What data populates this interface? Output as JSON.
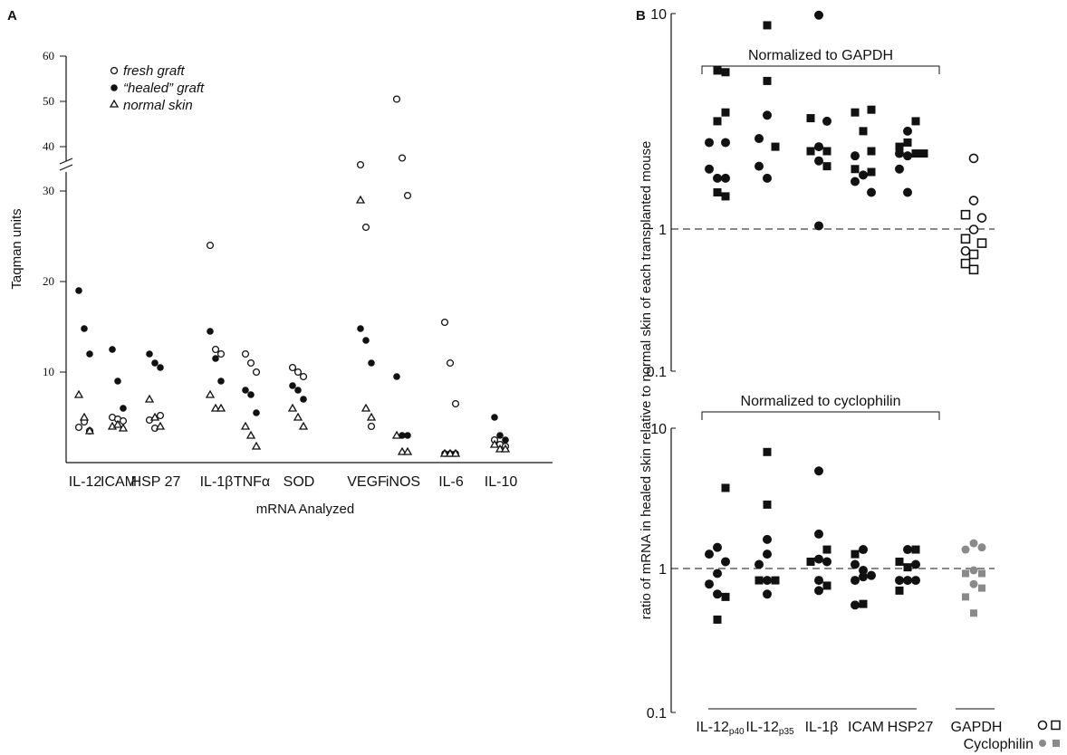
{
  "panel_a_letter": "A",
  "panel_b_letter": "B",
  "chart_data": [
    {
      "type": "scatter",
      "panel": "A",
      "ylabel": "Taqman units",
      "xlabel": "mRNA Analyzed",
      "y_ticks_lower": [
        10,
        20,
        30
      ],
      "y_ticks_upper": [
        40,
        50,
        60
      ],
      "y_axis_break": "between 30 and 40",
      "categories": [
        "IL-12",
        "ICAM",
        "HSP 27",
        "IL-1β",
        "TNFα",
        "SOD",
        "VEGF",
        "iNOS",
        "IL-6",
        "IL-10"
      ],
      "legend": {
        "fresh": "fresh graft",
        "healed": "“healed” graft",
        "normal": "normal skin"
      },
      "series": [
        {
          "name": "fresh graft",
          "marker": "open-circle",
          "values": [
            [
              3.9,
              4.5,
              3.5
            ],
            [
              5.0,
              4.8,
              4.6
            ],
            [
              4.7,
              3.8,
              5.2
            ],
            [
              24,
              12.5,
              12.0
            ],
            [
              12.0,
              11.0,
              10.0
            ],
            [
              10.5,
              10.0,
              9.5
            ],
            [
              36,
              26,
              4.0
            ],
            [
              50.5,
              37.5,
              29.5
            ],
            [
              15.5,
              11.0,
              6.5
            ],
            [
              2.5,
              2.0,
              1.8
            ]
          ]
        },
        {
          "name": "“healed” graft",
          "marker": "filled-circle",
          "values": [
            [
              19,
              14.8,
              12.0
            ],
            [
              12.5,
              9.0,
              6.0
            ],
            [
              12.0,
              11.0,
              10.5
            ],
            [
              14.5,
              11.5,
              9.0
            ],
            [
              8.0,
              7.5,
              5.5
            ],
            [
              8.5,
              8.0,
              7.0
            ],
            [
              14.8,
              13.5,
              11.0
            ],
            [
              9.5,
              3.0,
              3.0
            ],
            [
              1.0,
              1.0,
              1.0
            ],
            [
              5.0,
              3.0,
              2.5
            ]
          ]
        },
        {
          "name": "normal skin",
          "marker": "open-triangle",
          "values": [
            [
              7.5,
              5.0,
              3.5
            ],
            [
              4.0,
              4.2,
              3.8
            ],
            [
              7.0,
              5.0,
              4.0
            ],
            [
              7.5,
              6.0,
              6.0
            ],
            [
              4.0,
              3.0,
              1.8
            ],
            [
              6.0,
              5.0,
              4.0
            ],
            [
              29,
              6.0,
              5.0
            ],
            [
              3.0,
              1.2,
              1.2
            ],
            [
              1.0,
              1.0,
              1.0
            ],
            [
              2.0,
              1.5,
              1.5
            ]
          ]
        }
      ]
    },
    {
      "type": "scatter",
      "panel": "B-top",
      "title": "Normalized to GAPDH",
      "ylabel": "ratio of mRNA in healed skin relative to normal skin of each transplanted mouse",
      "yscale": "log",
      "ylim": [
        0.1,
        10
      ],
      "y_ticks": [
        "10",
        "1",
        "0.1"
      ],
      "reference_line": 1,
      "categories": [
        "IL-12p40",
        "IL-12p35",
        "IL-1β",
        "ICAM",
        "HSP27",
        "GAPDH"
      ],
      "points": [
        {
          "cat": 0,
          "off": 1,
          "v": 4.8,
          "m": "sq"
        },
        {
          "cat": 0,
          "off": 2,
          "v": 4.7,
          "m": "sq"
        },
        {
          "cat": 0,
          "off": 1,
          "v": 2.5,
          "m": "sq"
        },
        {
          "cat": 0,
          "off": 2,
          "v": 2.8,
          "m": "sq"
        },
        {
          "cat": 0,
          "off": 0,
          "v": 1.9,
          "m": "ci"
        },
        {
          "cat": 0,
          "off": 2,
          "v": 1.9,
          "m": "ci"
        },
        {
          "cat": 0,
          "off": 0,
          "v": 1.35,
          "m": "ci"
        },
        {
          "cat": 0,
          "off": 1,
          "v": 1.2,
          "m": "ci"
        },
        {
          "cat": 0,
          "off": 2,
          "v": 1.2,
          "m": "ci"
        },
        {
          "cat": 0,
          "off": 1,
          "v": 1.0,
          "m": "sq"
        },
        {
          "cat": 0,
          "off": 2,
          "v": 0.95,
          "m": "sq"
        },
        {
          "cat": 1,
          "off": 1,
          "v": 8.6,
          "m": "sq"
        },
        {
          "cat": 1,
          "off": 1,
          "v": 4.2,
          "m": "sq"
        },
        {
          "cat": 1,
          "off": 1,
          "v": 2.7,
          "m": "ci"
        },
        {
          "cat": 1,
          "off": 0,
          "v": 2.0,
          "m": "ci"
        },
        {
          "cat": 1,
          "off": 2,
          "v": 1.8,
          "m": "sq"
        },
        {
          "cat": 1,
          "off": 0,
          "v": 1.4,
          "m": "ci"
        },
        {
          "cat": 1,
          "off": 1,
          "v": 1.2,
          "m": "ci"
        },
        {
          "cat": 2,
          "off": 1,
          "v": 9.8,
          "m": "ci"
        },
        {
          "cat": 2,
          "off": 0,
          "v": 2.6,
          "m": "sq"
        },
        {
          "cat": 2,
          "off": 2,
          "v": 2.5,
          "m": "ci"
        },
        {
          "cat": 2,
          "off": 0,
          "v": 1.7,
          "m": "sq"
        },
        {
          "cat": 2,
          "off": 1,
          "v": 1.8,
          "m": "ci"
        },
        {
          "cat": 2,
          "off": 2,
          "v": 1.7,
          "m": "sq"
        },
        {
          "cat": 2,
          "off": 1,
          "v": 1.5,
          "m": "ci"
        },
        {
          "cat": 2,
          "off": 2,
          "v": 1.4,
          "m": "sq"
        },
        {
          "cat": 2,
          "off": 1,
          "v": 0.65,
          "m": "ci"
        },
        {
          "cat": 3,
          "off": 0,
          "v": 2.8,
          "m": "sq"
        },
        {
          "cat": 3,
          "off": 2,
          "v": 2.9,
          "m": "sq"
        },
        {
          "cat": 3,
          "off": 1,
          "v": 2.2,
          "m": "sq"
        },
        {
          "cat": 3,
          "off": 0,
          "v": 1.6,
          "m": "ci"
        },
        {
          "cat": 3,
          "off": 2,
          "v": 1.7,
          "m": "sq"
        },
        {
          "cat": 3,
          "off": 0,
          "v": 1.35,
          "m": "sq"
        },
        {
          "cat": 3,
          "off": 2,
          "v": 1.3,
          "m": "sq"
        },
        {
          "cat": 3,
          "off": 1,
          "v": 1.25,
          "m": "ci"
        },
        {
          "cat": 3,
          "off": 0,
          "v": 1.15,
          "m": "ci"
        },
        {
          "cat": 3,
          "off": 2,
          "v": 1.0,
          "m": "ci"
        },
        {
          "cat": 4,
          "off": 2,
          "v": 2.5,
          "m": "sq"
        },
        {
          "cat": 4,
          "off": 1,
          "v": 2.2,
          "m": "ci"
        },
        {
          "cat": 4,
          "off": 0,
          "v": 1.8,
          "m": "sq"
        },
        {
          "cat": 4,
          "off": 1,
          "v": 1.9,
          "m": "sq"
        },
        {
          "cat": 4,
          "off": 0,
          "v": 1.65,
          "m": "ci"
        },
        {
          "cat": 4,
          "off": 1,
          "v": 1.6,
          "m": "ci"
        },
        {
          "cat": 4,
          "off": 2,
          "v": 1.65,
          "m": "sq"
        },
        {
          "cat": 4,
          "off": 3,
          "v": 1.65,
          "m": "sq"
        },
        {
          "cat": 4,
          "off": 0,
          "v": 1.35,
          "m": "ci"
        },
        {
          "cat": 4,
          "off": 1,
          "v": 1.0,
          "m": "ci"
        },
        {
          "cat": 5,
          "off": 1,
          "v": 1.55,
          "m": "oci"
        },
        {
          "cat": 5,
          "off": 1,
          "v": 0.9,
          "m": "oci"
        },
        {
          "cat": 5,
          "off": 0,
          "v": 0.75,
          "m": "osq"
        },
        {
          "cat": 5,
          "off": 2,
          "v": 0.72,
          "m": "oci"
        },
        {
          "cat": 5,
          "off": 1,
          "v": 0.62,
          "m": "oci"
        },
        {
          "cat": 5,
          "off": 0,
          "v": 0.55,
          "m": "osq"
        },
        {
          "cat": 5,
          "off": 2,
          "v": 0.52,
          "m": "osq"
        },
        {
          "cat": 5,
          "off": 0,
          "v": 0.47,
          "m": "oci"
        },
        {
          "cat": 5,
          "off": 1,
          "v": 0.45,
          "m": "osq"
        },
        {
          "cat": 5,
          "off": 0,
          "v": 0.4,
          "m": "osq"
        },
        {
          "cat": 5,
          "off": 1,
          "v": 0.37,
          "m": "osq"
        }
      ]
    },
    {
      "type": "scatter",
      "panel": "B-bottom",
      "title": "Normalized to cyclophilin",
      "yscale": "log",
      "ylim": [
        0.1,
        10
      ],
      "y_ticks": [
        "10",
        "1",
        "0.1"
      ],
      "reference_line": 1,
      "categories": [
        "IL-12p40",
        "IL-12p35",
        "IL-1β",
        "ICAM",
        "HSP27",
        "GAPDH"
      ],
      "points": [
        {
          "cat": 0,
          "off": 2,
          "v": 3.8,
          "m": "sq"
        },
        {
          "cat": 0,
          "off": 1,
          "v": 1.45,
          "m": "ci"
        },
        {
          "cat": 0,
          "off": 0,
          "v": 1.3,
          "m": "ci"
        },
        {
          "cat": 0,
          "off": 2,
          "v": 1.15,
          "m": "ci"
        },
        {
          "cat": 0,
          "off": 1,
          "v": 0.95,
          "m": "ci"
        },
        {
          "cat": 0,
          "off": 0,
          "v": 0.8,
          "m": "ci"
        },
        {
          "cat": 0,
          "off": 1,
          "v": 0.68,
          "m": "ci"
        },
        {
          "cat": 0,
          "off": 2,
          "v": 0.65,
          "m": "sq"
        },
        {
          "cat": 0,
          "off": 1,
          "v": 0.45,
          "m": "sq"
        },
        {
          "cat": 1,
          "off": 1,
          "v": 6.8,
          "m": "sq"
        },
        {
          "cat": 1,
          "off": 1,
          "v": 2.9,
          "m": "sq"
        },
        {
          "cat": 1,
          "off": 1,
          "v": 1.65,
          "m": "ci"
        },
        {
          "cat": 1,
          "off": 1,
          "v": 1.3,
          "m": "ci"
        },
        {
          "cat": 1,
          "off": 0,
          "v": 1.1,
          "m": "ci"
        },
        {
          "cat": 1,
          "off": 0,
          "v": 0.85,
          "m": "sq"
        },
        {
          "cat": 1,
          "off": 1,
          "v": 0.85,
          "m": "ci"
        },
        {
          "cat": 1,
          "off": 2,
          "v": 0.85,
          "m": "sq"
        },
        {
          "cat": 1,
          "off": 1,
          "v": 0.68,
          "m": "ci"
        },
        {
          "cat": 2,
          "off": 1,
          "v": 5.0,
          "m": "ci"
        },
        {
          "cat": 2,
          "off": 1,
          "v": 1.8,
          "m": "ci"
        },
        {
          "cat": 2,
          "off": 2,
          "v": 1.4,
          "m": "sq"
        },
        {
          "cat": 2,
          "off": 1,
          "v": 1.2,
          "m": "ci"
        },
        {
          "cat": 2,
          "off": 0,
          "v": 1.15,
          "m": "sq"
        },
        {
          "cat": 2,
          "off": 2,
          "v": 1.15,
          "m": "ci"
        },
        {
          "cat": 2,
          "off": 1,
          "v": 0.85,
          "m": "ci"
        },
        {
          "cat": 2,
          "off": 2,
          "v": 0.78,
          "m": "sq"
        },
        {
          "cat": 2,
          "off": 1,
          "v": 0.72,
          "m": "ci"
        },
        {
          "cat": 3,
          "off": 0,
          "v": 1.3,
          "m": "sq"
        },
        {
          "cat": 3,
          "off": 1,
          "v": 1.4,
          "m": "ci"
        },
        {
          "cat": 3,
          "off": 0,
          "v": 1.1,
          "m": "ci"
        },
        {
          "cat": 3,
          "off": 1,
          "v": 1.0,
          "m": "ci"
        },
        {
          "cat": 3,
          "off": 1,
          "v": 0.9,
          "m": "ci"
        },
        {
          "cat": 3,
          "off": 0,
          "v": 0.85,
          "m": "ci"
        },
        {
          "cat": 3,
          "off": 2,
          "v": 0.92,
          "m": "ci"
        },
        {
          "cat": 3,
          "off": 0,
          "v": 0.57,
          "m": "ci"
        },
        {
          "cat": 3,
          "off": 1,
          "v": 0.58,
          "m": "sq"
        },
        {
          "cat": 4,
          "off": 1,
          "v": 1.4,
          "m": "ci"
        },
        {
          "cat": 4,
          "off": 2,
          "v": 1.4,
          "m": "sq"
        },
        {
          "cat": 4,
          "off": 0,
          "v": 1.15,
          "m": "sq"
        },
        {
          "cat": 4,
          "off": 1,
          "v": 1.05,
          "m": "sq"
        },
        {
          "cat": 4,
          "off": 2,
          "v": 1.1,
          "m": "ci"
        },
        {
          "cat": 4,
          "off": 0,
          "v": 0.85,
          "m": "ci"
        },
        {
          "cat": 4,
          "off": 1,
          "v": 0.85,
          "m": "ci"
        },
        {
          "cat": 4,
          "off": 2,
          "v": 0.85,
          "m": "ci"
        },
        {
          "cat": 4,
          "off": 0,
          "v": 0.72,
          "m": "sq"
        },
        {
          "cat": 5,
          "off": 1,
          "v": 1.55,
          "m": "gci"
        },
        {
          "cat": 5,
          "off": 2,
          "v": 1.45,
          "m": "gci"
        },
        {
          "cat": 5,
          "off": 0,
          "v": 1.4,
          "m": "gci"
        },
        {
          "cat": 5,
          "off": 1,
          "v": 1.0,
          "m": "gci"
        },
        {
          "cat": 5,
          "off": 0,
          "v": 0.95,
          "m": "gsq"
        },
        {
          "cat": 5,
          "off": 2,
          "v": 0.95,
          "m": "gsq"
        },
        {
          "cat": 5,
          "off": 1,
          "v": 0.8,
          "m": "gci"
        },
        {
          "cat": 5,
          "off": 2,
          "v": 0.75,
          "m": "gsq"
        },
        {
          "cat": 5,
          "off": 0,
          "v": 0.65,
          "m": "gsq"
        },
        {
          "cat": 5,
          "off": 1,
          "v": 0.5,
          "m": "gsq"
        }
      ]
    }
  ],
  "panel_b_category_labels": [
    {
      "main": "IL-12",
      "sub": "p40"
    },
    {
      "main": "IL-12",
      "sub": "p35"
    },
    {
      "main": "IL-1β",
      "sub": ""
    },
    {
      "main": "ICAM",
      "sub": ""
    },
    {
      "main": "HSP27",
      "sub": ""
    },
    {
      "main": "GAPDH",
      "sub": ""
    }
  ],
  "panel_b_legend_label": "Cyclophilin",
  "colors": {
    "ink": "#111111",
    "gray_marker": "#8a8a8a"
  }
}
